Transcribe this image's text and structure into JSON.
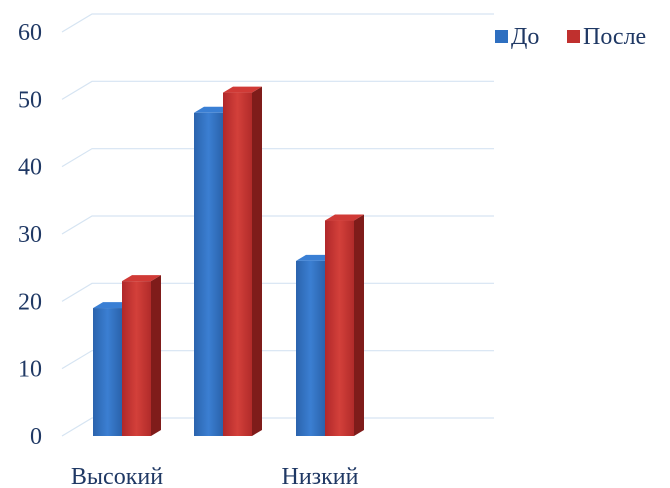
{
  "chart_data": {
    "type": "bar",
    "title": "",
    "xlabel": "",
    "ylabel": "",
    "categories": [
      "Высокий",
      "",
      "Низкий"
    ],
    "series": [
      {
        "name": "До",
        "values": [
          19,
          48,
          26
        ]
      },
      {
        "name": "После",
        "values": [
          23,
          51,
          32
        ]
      }
    ],
    "ylim": [
      0,
      60
    ],
    "yticks": [
      0,
      10,
      20,
      30,
      40,
      50,
      60
    ],
    "grid": true,
    "legend": "top-right",
    "style": "3d-clustered-column"
  },
  "colors": {
    "series": [
      "#2e6fc0",
      "#c0302e"
    ],
    "series_top": [
      "#3a7fd4",
      "#d03a36"
    ],
    "series_side": [
      "#1d4a8a",
      "#7f1c1a"
    ],
    "grid": "#d6e4f2",
    "text": "#1f3864"
  }
}
